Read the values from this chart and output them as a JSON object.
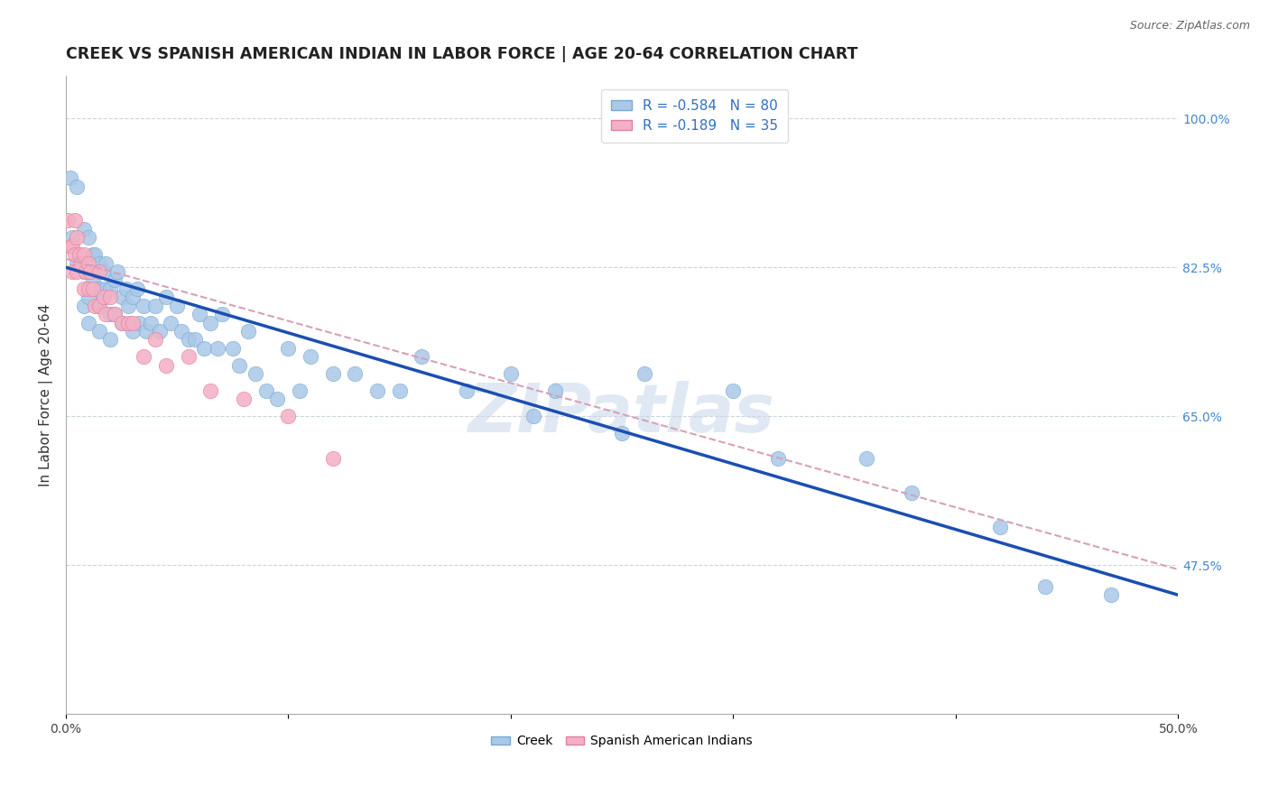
{
  "title": "CREEK VS SPANISH AMERICAN INDIAN IN LABOR FORCE | AGE 20-64 CORRELATION CHART",
  "source": "Source: ZipAtlas.com",
  "ylabel": "In Labor Force | Age 20-64",
  "xlim": [
    0.0,
    0.5
  ],
  "ylim": [
    0.3,
    1.05
  ],
  "xtick_vals": [
    0.0,
    0.1,
    0.2,
    0.3,
    0.4,
    0.5
  ],
  "xticklabels": [
    "0.0%",
    "",
    "",
    "",
    "",
    "50.0%"
  ],
  "yticks_right": [
    0.475,
    0.65,
    0.825,
    1.0
  ],
  "yticks_right_labels": [
    "47.5%",
    "65.0%",
    "82.5%",
    "100.0%"
  ],
  "creek_color_fill": "#aac8e8",
  "creek_color_edge": "#7aaad0",
  "spanish_color_fill": "#f4b0c4",
  "spanish_color_edge": "#e080a0",
  "creek_line_color": "#1a4fb0",
  "spanish_line_color": "#d8a0b8",
  "creek_R": -0.584,
  "creek_N": 80,
  "spanish_R": -0.189,
  "spanish_N": 35,
  "watermark": "ZIPatlas",
  "watermark_color": "#c8d8ea",
  "title_fontsize": 12.5,
  "axis_label_fontsize": 11,
  "tick_fontsize": 10,
  "creek_points_x": [
    0.002,
    0.003,
    0.005,
    0.005,
    0.008,
    0.008,
    0.008,
    0.01,
    0.01,
    0.01,
    0.01,
    0.012,
    0.012,
    0.013,
    0.013,
    0.015,
    0.015,
    0.015,
    0.015,
    0.017,
    0.017,
    0.018,
    0.018,
    0.02,
    0.02,
    0.02,
    0.022,
    0.022,
    0.023,
    0.025,
    0.025,
    0.027,
    0.028,
    0.03,
    0.03,
    0.032,
    0.033,
    0.035,
    0.036,
    0.038,
    0.04,
    0.042,
    0.045,
    0.047,
    0.05,
    0.052,
    0.055,
    0.058,
    0.06,
    0.062,
    0.065,
    0.068,
    0.07,
    0.075,
    0.078,
    0.082,
    0.085,
    0.09,
    0.095,
    0.1,
    0.105,
    0.11,
    0.12,
    0.13,
    0.14,
    0.15,
    0.16,
    0.18,
    0.2,
    0.21,
    0.22,
    0.25,
    0.26,
    0.3,
    0.32,
    0.36,
    0.38,
    0.42,
    0.44,
    0.47
  ],
  "creek_points_y": [
    0.93,
    0.86,
    0.92,
    0.83,
    0.87,
    0.82,
    0.78,
    0.86,
    0.82,
    0.79,
    0.76,
    0.84,
    0.81,
    0.84,
    0.8,
    0.83,
    0.8,
    0.78,
    0.75,
    0.82,
    0.79,
    0.83,
    0.8,
    0.8,
    0.77,
    0.74,
    0.81,
    0.77,
    0.82,
    0.79,
    0.76,
    0.8,
    0.78,
    0.79,
    0.75,
    0.8,
    0.76,
    0.78,
    0.75,
    0.76,
    0.78,
    0.75,
    0.79,
    0.76,
    0.78,
    0.75,
    0.74,
    0.74,
    0.77,
    0.73,
    0.76,
    0.73,
    0.77,
    0.73,
    0.71,
    0.75,
    0.7,
    0.68,
    0.67,
    0.73,
    0.68,
    0.72,
    0.7,
    0.7,
    0.68,
    0.68,
    0.72,
    0.68,
    0.7,
    0.65,
    0.68,
    0.63,
    0.7,
    0.68,
    0.6,
    0.6,
    0.56,
    0.52,
    0.45,
    0.44
  ],
  "spanish_points_x": [
    0.001,
    0.002,
    0.003,
    0.003,
    0.004,
    0.004,
    0.005,
    0.005,
    0.006,
    0.007,
    0.008,
    0.008,
    0.009,
    0.01,
    0.01,
    0.011,
    0.012,
    0.013,
    0.015,
    0.015,
    0.017,
    0.018,
    0.02,
    0.022,
    0.025,
    0.028,
    0.03,
    0.035,
    0.04,
    0.045,
    0.055,
    0.065,
    0.08,
    0.1,
    0.12
  ],
  "spanish_points_y": [
    0.88,
    0.85,
    0.85,
    0.82,
    0.88,
    0.84,
    0.86,
    0.82,
    0.84,
    0.83,
    0.84,
    0.8,
    0.82,
    0.83,
    0.8,
    0.82,
    0.8,
    0.78,
    0.82,
    0.78,
    0.79,
    0.77,
    0.79,
    0.77,
    0.76,
    0.76,
    0.76,
    0.72,
    0.74,
    0.71,
    0.72,
    0.68,
    0.67,
    0.65,
    0.6
  ],
  "creek_line_x": [
    0.0,
    0.5
  ],
  "creek_line_y": [
    0.825,
    0.44
  ],
  "spanish_line_x": [
    0.0,
    0.5
  ],
  "spanish_line_y": [
    0.835,
    0.47
  ]
}
